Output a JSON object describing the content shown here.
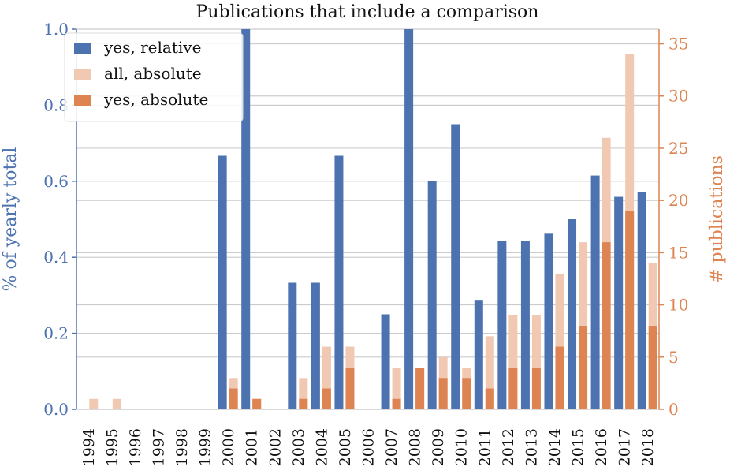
{
  "chart_data": {
    "type": "bar",
    "title": "Publications that include a comparison",
    "ylabel_left": "% of yearly total",
    "ylabel_right": "# publications",
    "ylim_left": [
      0,
      1.0
    ],
    "ylim_right": [
      0,
      36.4
    ],
    "yticks_left": [
      "0.0",
      "0.2",
      "0.4",
      "0.6",
      "0.8",
      "1.0"
    ],
    "yticks_right": [
      "0",
      "5",
      "10",
      "15",
      "20",
      "25",
      "30",
      "35"
    ],
    "grid": true,
    "legend_position": "top-left",
    "categories": [
      "1994",
      "1995",
      "1996",
      "1997",
      "1998",
      "1999",
      "2000",
      "2001",
      "2002",
      "2003",
      "2004",
      "2005",
      "2006",
      "2007",
      "2008",
      "2009",
      "2010",
      "2011",
      "2012",
      "2013",
      "2014",
      "2015",
      "2016",
      "2017",
      "2018"
    ],
    "series": [
      {
        "name": "yes, relative",
        "axis": "left",
        "color": "#4c72b0",
        "values": [
          0,
          0,
          0,
          0,
          0,
          0,
          0.667,
          1.0,
          0,
          0.333,
          0.333,
          0.667,
          0,
          0.25,
          1.0,
          0.6,
          0.75,
          0.286,
          0.444,
          0.444,
          0.462,
          0.5,
          0.615,
          0.559,
          0.571
        ]
      },
      {
        "name": "all, absolute",
        "axis": "right",
        "color": "#f1c9b3",
        "values": [
          1,
          1,
          0,
          0,
          0,
          0,
          3,
          1,
          0,
          3,
          6,
          6,
          0,
          4,
          4,
          5,
          4,
          7,
          9,
          9,
          13,
          16,
          26,
          34,
          14
        ]
      },
      {
        "name": "yes, absolute",
        "axis": "right",
        "color": "#dd8452",
        "values": [
          0,
          0,
          0,
          0,
          0,
          0,
          2,
          1,
          0,
          1,
          2,
          4,
          0,
          1,
          4,
          3,
          3,
          2,
          4,
          4,
          6,
          8,
          16,
          19,
          8
        ]
      }
    ],
    "colors": {
      "left_axis": "#4c72b0",
      "right_axis": "#dd8452",
      "grid": "#cccccc"
    }
  }
}
